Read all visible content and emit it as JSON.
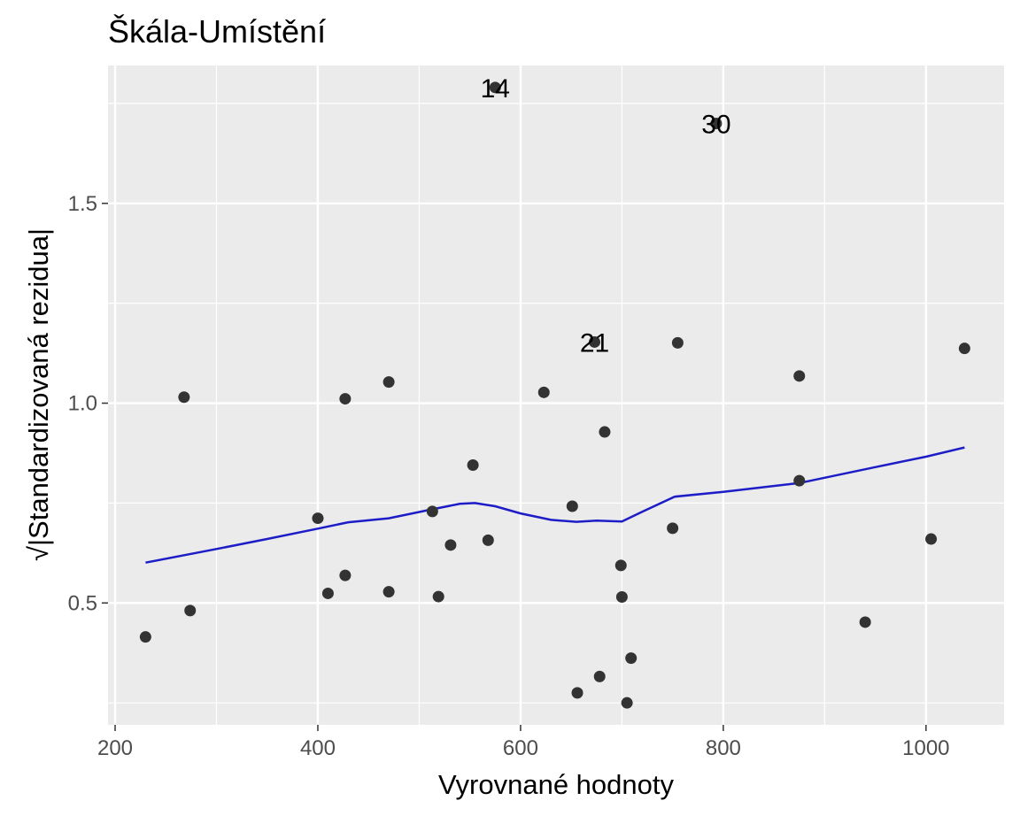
{
  "chart_data": {
    "type": "scatter",
    "title": "Škála-Umístění",
    "xlabel": "Vyrovnané hodnoty",
    "ylabel": "√|Standardizovaná rezidua|",
    "xlim": [
      193,
      1077
    ],
    "ylim": [
      0.195,
      1.845
    ],
    "xticks": [
      200,
      400,
      600,
      800,
      1000
    ],
    "yticks": [
      0.5,
      1.0,
      1.5
    ],
    "xtick_labels": [
      "200",
      "400",
      "600",
      "800",
      "1000"
    ],
    "ytick_labels": [
      "0.5",
      "1.0",
      "1.5"
    ],
    "grid": true,
    "colors": {
      "panel": "#ebebeb",
      "grid": "#ffffff",
      "points": "#333333",
      "smooth_line": "#1d1dc7"
    },
    "points": [
      {
        "x": 230,
        "y": 0.415
      },
      {
        "x": 268,
        "y": 1.015
      },
      {
        "x": 274,
        "y": 0.481
      },
      {
        "x": 400,
        "y": 0.712
      },
      {
        "x": 410,
        "y": 0.524
      },
      {
        "x": 427,
        "y": 1.011
      },
      {
        "x": 427,
        "y": 0.569
      },
      {
        "x": 470,
        "y": 1.053
      },
      {
        "x": 470,
        "y": 0.528
      },
      {
        "x": 513,
        "y": 0.729
      },
      {
        "x": 519,
        "y": 0.516
      },
      {
        "x": 531,
        "y": 0.645
      },
      {
        "x": 553,
        "y": 0.845
      },
      {
        "x": 568,
        "y": 0.657
      },
      {
        "x": 575,
        "y": 1.79
      },
      {
        "x": 623,
        "y": 1.027
      },
      {
        "x": 651,
        "y": 0.742
      },
      {
        "x": 656,
        "y": 0.275
      },
      {
        "x": 673,
        "y": 1.153
      },
      {
        "x": 678,
        "y": 0.316
      },
      {
        "x": 683,
        "y": 0.928
      },
      {
        "x": 699,
        "y": 0.594
      },
      {
        "x": 700,
        "y": 0.515
      },
      {
        "x": 705,
        "y": 0.25
      },
      {
        "x": 709,
        "y": 0.362
      },
      {
        "x": 750,
        "y": 0.687
      },
      {
        "x": 755,
        "y": 1.151
      },
      {
        "x": 793,
        "y": 1.7
      },
      {
        "x": 875,
        "y": 1.068
      },
      {
        "x": 875,
        "y": 0.806
      },
      {
        "x": 940,
        "y": 0.452
      },
      {
        "x": 1005,
        "y": 0.66
      },
      {
        "x": 1038,
        "y": 1.137
      }
    ],
    "point_labels": [
      {
        "text": "14",
        "x": 575,
        "y": 1.79
      },
      {
        "text": "30",
        "x": 793,
        "y": 1.7
      },
      {
        "text": "21",
        "x": 673,
        "y": 1.153
      }
    ],
    "smooth_line": [
      {
        "x": 230,
        "y": 0.601
      },
      {
        "x": 300,
        "y": 0.635
      },
      {
        "x": 350,
        "y": 0.66
      },
      {
        "x": 400,
        "y": 0.686
      },
      {
        "x": 430,
        "y": 0.702
      },
      {
        "x": 470,
        "y": 0.712
      },
      {
        "x": 510,
        "y": 0.733
      },
      {
        "x": 540,
        "y": 0.748
      },
      {
        "x": 555,
        "y": 0.75
      },
      {
        "x": 575,
        "y": 0.742
      },
      {
        "x": 600,
        "y": 0.724
      },
      {
        "x": 630,
        "y": 0.708
      },
      {
        "x": 655,
        "y": 0.703
      },
      {
        "x": 675,
        "y": 0.706
      },
      {
        "x": 700,
        "y": 0.704
      },
      {
        "x": 720,
        "y": 0.728
      },
      {
        "x": 752,
        "y": 0.766
      },
      {
        "x": 800,
        "y": 0.778
      },
      {
        "x": 875,
        "y": 0.8
      },
      {
        "x": 950,
        "y": 0.84
      },
      {
        "x": 1000,
        "y": 0.866
      },
      {
        "x": 1038,
        "y": 0.889
      }
    ]
  }
}
